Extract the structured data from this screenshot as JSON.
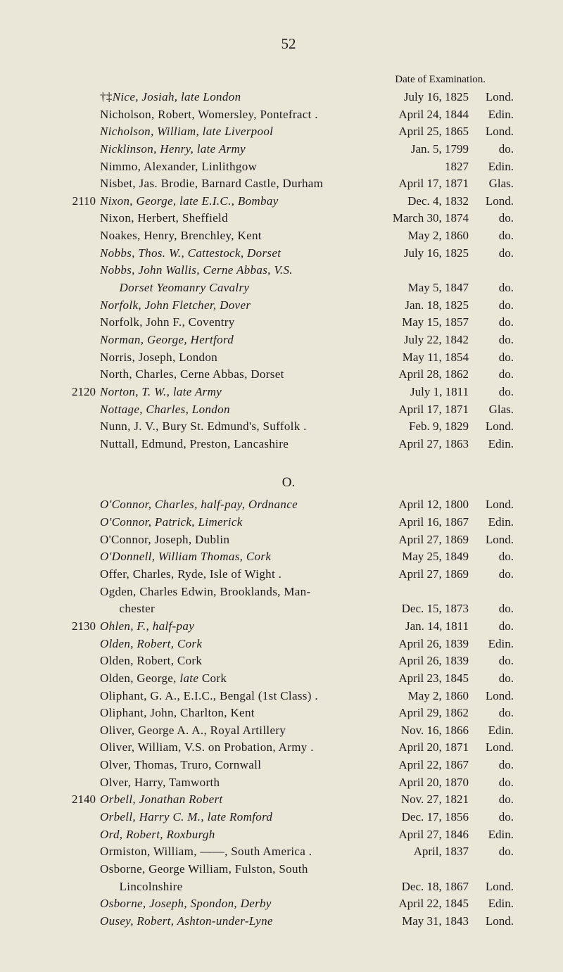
{
  "page_number": "52",
  "date_header": "Date of Examination.",
  "section_letter": "O.",
  "entries_top": [
    {
      "m": "",
      "name": "†‡<i>Nice, Josiah, late London</i>",
      "date": "July 16, 1825",
      "place": "Lond."
    },
    {
      "m": "",
      "name": "Nicholson, Robert, Womersley, Pontefract .",
      "date": "April 24, 1844",
      "place": "Edin."
    },
    {
      "m": "",
      "name": "<i>Nicholson, William, late Liverpool</i>",
      "date": "April 25, 1865",
      "place": "Lond."
    },
    {
      "m": "",
      "name": "<i>Nicklinson, Henry, late Army</i>",
      "date": "Jan. 5, 1799",
      "place": "do."
    },
    {
      "m": "",
      "name": "Nimmo, Alexander, Linlithgow",
      "date": "1827",
      "place": "Edin."
    },
    {
      "m": "",
      "name": "Nisbet, Jas. Brodie, Barnard Castle, Durham",
      "date": "April 17, 1871",
      "place": "Glas."
    },
    {
      "m": "2110",
      "name": "<i>Nixon, George, late E.I.C., Bombay</i>",
      "date": "Dec. 4, 1832",
      "place": "Lond."
    },
    {
      "m": "",
      "name": "Nixon, Herbert, Sheffield",
      "date": "March 30, 1874",
      "place": "do."
    },
    {
      "m": "",
      "name": "Noakes, Henry, Brenchley, Kent",
      "date": "May 2, 1860",
      "place": "do."
    },
    {
      "m": "",
      "name": "<i>Nobbs, Thos. W., Cattestock, Dorset</i>",
      "date": "July 16, 1825",
      "place": "do."
    },
    {
      "m": "",
      "name": "<i>Nobbs, John Wallis, Cerne Abbas, V.S.</i>",
      "date": "",
      "place": ""
    },
    {
      "m": "",
      "name": "&nbsp;&nbsp;&nbsp;&nbsp;&nbsp;&nbsp;<i>Dorset Yeomanry Cavalry</i>",
      "date": "May 5, 1847",
      "place": "do."
    },
    {
      "m": "",
      "name": "<i>Norfolk, John Fletcher, Dover</i>",
      "date": "Jan. 18, 1825",
      "place": "do."
    },
    {
      "m": "",
      "name": "Norfolk, John F., Coventry",
      "date": "May 15, 1857",
      "place": "do."
    },
    {
      "m": "",
      "name": "<i>Norman, George, Hertford</i>",
      "date": "July 22, 1842",
      "place": "do."
    },
    {
      "m": "",
      "name": "Norris, Joseph, London",
      "date": "May 11, 1854",
      "place": "do."
    },
    {
      "m": "",
      "name": "North, Charles, Cerne Abbas, Dorset",
      "date": "April 28, 1862",
      "place": "do."
    },
    {
      "m": "2120",
      "name": "<i>Norton, T. W., late Army</i>",
      "date": "July 1, 1811",
      "place": "do."
    },
    {
      "m": "",
      "name": "<i>Nottage, Charles, London</i>",
      "date": "April 17, 1871",
      "place": "Glas."
    },
    {
      "m": "",
      "name": "Nunn, J. V., Bury St. Edmund's, Suffolk .",
      "date": "Feb. 9, 1829",
      "place": "Lond."
    },
    {
      "m": "",
      "name": "Nuttall, Edmund, Preston, Lancashire",
      "date": "April 27, 1863",
      "place": "Edin."
    }
  ],
  "entries_bottom": [
    {
      "m": "",
      "name": "<i>O'Connor, Charles, half-pay, Ordnance</i>",
      "date": "April 12, 1800",
      "place": "Lond."
    },
    {
      "m": "",
      "name": "<i>O'Connor, Patrick, Limerick</i>",
      "date": "April 16, 1867",
      "place": "Edin."
    },
    {
      "m": "",
      "name": "O'Connor, Joseph, Dublin",
      "date": "April 27, 1869",
      "place": "Lond."
    },
    {
      "m": "",
      "name": "<i>O'Donnell, William Thomas, Cork</i>",
      "date": "May 25, 1849",
      "place": "do."
    },
    {
      "m": "",
      "name": "Offer, Charles, Ryde, Isle of Wight .",
      "date": "April 27, 1869",
      "place": "do."
    },
    {
      "m": "",
      "name": "Ogden, Charles Edwin, Brooklands, Man-",
      "date": "",
      "place": ""
    },
    {
      "m": "",
      "name": "&nbsp;&nbsp;&nbsp;&nbsp;&nbsp;&nbsp;chester",
      "date": "Dec. 15, 1873",
      "place": "do."
    },
    {
      "m": "2130",
      "name": "<i>Ohlen, F., half-pay</i>",
      "date": "Jan. 14, 1811",
      "place": "do."
    },
    {
      "m": "",
      "name": "<i>Olden, Robert, Cork</i>",
      "date": "April 26, 1839",
      "place": "Edin."
    },
    {
      "m": "",
      "name": "Olden, Robert, Cork",
      "date": "April 26, 1839",
      "place": "do."
    },
    {
      "m": "",
      "name": "Olden, George, <i>late</i> Cork",
      "date": "April 23, 1845",
      "place": "do."
    },
    {
      "m": "",
      "name": "Oliphant, G. A., E.I.C., Bengal (1st Class) .",
      "date": "May 2, 1860",
      "place": "Lond."
    },
    {
      "m": "",
      "name": "Oliphant, John, Charlton, Kent",
      "date": "April 29, 1862",
      "place": "do."
    },
    {
      "m": "",
      "name": "Oliver, George A. A., Royal Artillery",
      "date": "Nov. 16, 1866",
      "place": "Edin."
    },
    {
      "m": "",
      "name": "Oliver, William, V.S. on Probation, Army .",
      "date": "April 20, 1871",
      "place": "Lond."
    },
    {
      "m": "",
      "name": "Olver, Thomas, Truro, Cornwall",
      "date": "April 22, 1867",
      "place": "do."
    },
    {
      "m": "",
      "name": "Olver, Harry, Tamworth",
      "date": "April 20, 1870",
      "place": "do."
    },
    {
      "m": "2140",
      "name": "<i>Orbell, Jonathan Robert</i>",
      "date": "Nov. 27, 1821",
      "place": "do."
    },
    {
      "m": "",
      "name": "<i>Orbell, Harry C. M., late Romford</i>",
      "date": "Dec. 17, 1856",
      "place": "do."
    },
    {
      "m": "",
      "name": "<i>Ord, Robert, Roxburgh</i>",
      "date": "April 27, 1846",
      "place": "Edin."
    },
    {
      "m": "",
      "name": "Ormiston, William, ——, South America .",
      "date": "April, 1837",
      "place": "do."
    },
    {
      "m": "",
      "name": "Osborne, George William, Fulston, South",
      "date": "",
      "place": ""
    },
    {
      "m": "",
      "name": "&nbsp;&nbsp;&nbsp;&nbsp;&nbsp;&nbsp;Lincolnshire",
      "date": "Dec. 18, 1867",
      "place": "Lond."
    },
    {
      "m": "",
      "name": "<i>Osborne, Joseph, Spondon, Derby</i>",
      "date": "April 22, 1845",
      "place": "Edin."
    },
    {
      "m": "",
      "name": "<i>Ousey, Robert, Ashton-under-Lyne</i>",
      "date": "May 31, 1843",
      "place": "Lond."
    }
  ]
}
